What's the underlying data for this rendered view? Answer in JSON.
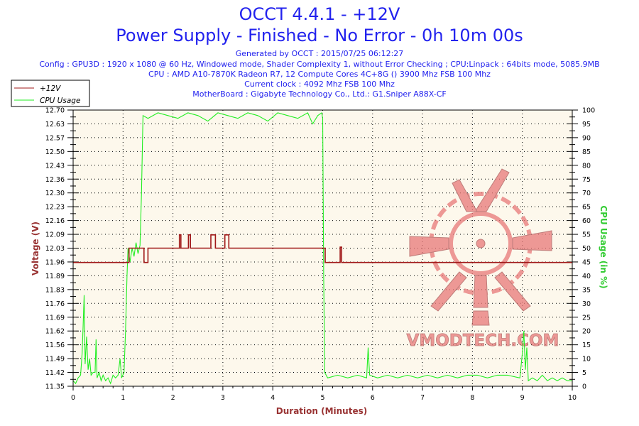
{
  "header": {
    "title": "OCCT 4.4.1 - +12V",
    "subtitle": "Power Supply - Finished - No Error - 0h 10m 00s",
    "generated": "Generated by OCCT : 2015/07/25 06:12:27",
    "config": "Config : GPU3D : 1920 x 1080 @ 60 Hz, Windowed mode, Shader Complexity 1, without Error Checking ; CPU:Linpack : 64bits mode, 5085.9MB",
    "cpu": "CPU : AMD A10-7870K Radeon R7, 12 Compute Cores 4C+8G () 3900 Mhz FSB 100 Mhz",
    "clock": "Current clock : 4092 Mhz FSB 100 Mhz",
    "motherboard": "MotherBoard : Gigabyte Technology Co., Ltd.: G1.Sniper A88X-CF"
  },
  "watermark": "VMODTECH.COM",
  "chart_data": {
    "type": "line",
    "xlabel": "Duration (Minutes)",
    "ylabel": "Voltage (V)",
    "y2label": "CPU Usage (in %)",
    "xlim": [
      0,
      10
    ],
    "ylim": [
      11.35,
      12.7
    ],
    "y2lim": [
      0,
      100
    ],
    "grid": true,
    "legend_placement": "top-left",
    "x_ticks": [
      "0",
      "1",
      "2",
      "3",
      "4",
      "5",
      "6",
      "7",
      "8",
      "9",
      "10"
    ],
    "y_ticks": [
      "11.35",
      "11.42",
      "11.49",
      "11.56",
      "11.62",
      "11.69",
      "11.76",
      "11.83",
      "11.89",
      "11.96",
      "12.03",
      "12.09",
      "12.16",
      "12.23",
      "12.30",
      "12.36",
      "12.43",
      "12.50",
      "12.57",
      "12.63",
      "12.70"
    ],
    "y2_ticks": [
      "0",
      "5",
      "10",
      "15",
      "20",
      "25",
      "30",
      "35",
      "40",
      "45",
      "50",
      "55",
      "60",
      "65",
      "70",
      "75",
      "80",
      "85",
      "90",
      "95",
      "100"
    ],
    "colors": {
      "voltage": "#a01818",
      "cpu": "#22ee22",
      "plot_bg": "#fdf8ec",
      "title": "#2222ee",
      "ylabel": "#993333",
      "y2label": "#33cc33"
    },
    "series": [
      {
        "name": "+12V",
        "axis": "left",
        "points": [
          [
            0,
            11.955
          ],
          [
            1.1,
            11.955
          ],
          [
            1.12,
            12.025
          ],
          [
            1.4,
            12.025
          ],
          [
            1.42,
            11.955
          ],
          [
            1.48,
            11.955
          ],
          [
            1.5,
            12.025
          ],
          [
            2.12,
            12.025
          ],
          [
            2.13,
            12.09
          ],
          [
            2.16,
            12.025
          ],
          [
            2.29,
            12.025
          ],
          [
            2.31,
            12.09
          ],
          [
            2.35,
            12.025
          ],
          [
            2.74,
            12.025
          ],
          [
            2.76,
            12.09
          ],
          [
            2.85,
            12.025
          ],
          [
            3.02,
            12.025
          ],
          [
            3.04,
            12.09
          ],
          [
            3.12,
            12.025
          ],
          [
            5.02,
            12.025
          ],
          [
            5.05,
            11.955
          ],
          [
            5.33,
            11.955
          ],
          [
            5.35,
            12.03
          ],
          [
            5.38,
            11.955
          ],
          [
            10,
            11.955
          ]
        ]
      },
      {
        "name": "CPU Usage",
        "axis": "right",
        "points": [
          [
            0,
            2
          ],
          [
            0.05,
            1
          ],
          [
            0.1,
            3
          ],
          [
            0.15,
            4
          ],
          [
            0.18,
            12
          ],
          [
            0.2,
            22
          ],
          [
            0.22,
            33
          ],
          [
            0.24,
            8
          ],
          [
            0.27,
            18
          ],
          [
            0.3,
            6
          ],
          [
            0.33,
            10
          ],
          [
            0.36,
            4
          ],
          [
            0.4,
            5
          ],
          [
            0.44,
            5
          ],
          [
            0.46,
            17
          ],
          [
            0.48,
            3
          ],
          [
            0.52,
            5
          ],
          [
            0.56,
            2
          ],
          [
            0.6,
            4
          ],
          [
            0.65,
            2
          ],
          [
            0.7,
            3
          ],
          [
            0.75,
            1
          ],
          [
            0.8,
            4
          ],
          [
            0.85,
            3
          ],
          [
            0.9,
            4
          ],
          [
            0.94,
            10
          ],
          [
            0.97,
            3
          ],
          [
            1.02,
            5
          ],
          [
            1.05,
            20
          ],
          [
            1.08,
            40
          ],
          [
            1.1,
            50
          ],
          [
            1.14,
            45
          ],
          [
            1.18,
            50
          ],
          [
            1.22,
            47
          ],
          [
            1.26,
            52
          ],
          [
            1.3,
            48
          ],
          [
            1.34,
            51
          ],
          [
            1.37,
            70
          ],
          [
            1.4,
            98
          ],
          [
            1.5,
            97
          ],
          [
            1.7,
            99
          ],
          [
            1.9,
            98
          ],
          [
            2.1,
            97
          ],
          [
            2.3,
            99
          ],
          [
            2.5,
            98
          ],
          [
            2.7,
            96
          ],
          [
            2.9,
            99
          ],
          [
            3.1,
            98
          ],
          [
            3.3,
            97
          ],
          [
            3.5,
            99
          ],
          [
            3.7,
            98
          ],
          [
            3.9,
            96
          ],
          [
            4.1,
            99
          ],
          [
            4.3,
            98
          ],
          [
            4.5,
            97
          ],
          [
            4.7,
            99
          ],
          [
            4.8,
            95
          ],
          [
            4.9,
            98
          ],
          [
            4.98,
            99
          ],
          [
            5.0,
            97
          ],
          [
            5.02,
            40
          ],
          [
            5.04,
            5
          ],
          [
            5.1,
            3
          ],
          [
            5.3,
            4
          ],
          [
            5.5,
            3
          ],
          [
            5.7,
            4
          ],
          [
            5.88,
            3
          ],
          [
            5.91,
            14
          ],
          [
            5.94,
            4
          ],
          [
            6.1,
            3
          ],
          [
            6.3,
            4
          ],
          [
            6.5,
            3
          ],
          [
            6.7,
            4
          ],
          [
            6.9,
            3
          ],
          [
            7.1,
            4
          ],
          [
            7.3,
            3
          ],
          [
            7.5,
            4
          ],
          [
            7.7,
            3
          ],
          [
            7.9,
            4
          ],
          [
            8.1,
            4
          ],
          [
            8.3,
            3
          ],
          [
            8.5,
            4
          ],
          [
            8.7,
            4
          ],
          [
            8.95,
            3
          ],
          [
            9.0,
            12
          ],
          [
            9.03,
            20
          ],
          [
            9.06,
            6
          ],
          [
            9.09,
            14
          ],
          [
            9.12,
            2
          ],
          [
            9.2,
            3
          ],
          [
            9.3,
            2
          ],
          [
            9.4,
            4
          ],
          [
            9.5,
            2
          ],
          [
            9.6,
            3
          ],
          [
            9.7,
            2
          ],
          [
            9.8,
            3
          ],
          [
            9.9,
            2
          ],
          [
            10,
            2
          ]
        ]
      }
    ]
  }
}
